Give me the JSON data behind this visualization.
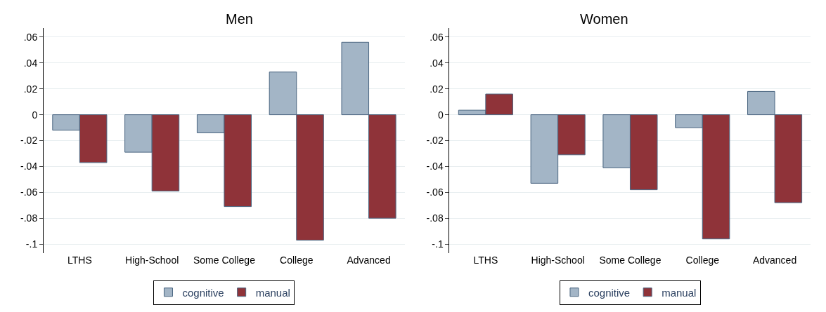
{
  "chart_data": [
    {
      "type": "bar",
      "title": "Men",
      "categories": [
        "LTHS",
        "High-School",
        "Some College",
        "College",
        "Advanced"
      ],
      "series": [
        {
          "name": "cognitive",
          "color": "#a3b5c6",
          "values": [
            -0.012,
            -0.029,
            -0.014,
            0.033,
            0.056
          ]
        },
        {
          "name": "manual",
          "color": "#8f3339",
          "values": [
            -0.037,
            -0.059,
            -0.071,
            -0.097,
            -0.08
          ]
        }
      ],
      "ylim": [
        -0.107,
        0.067
      ],
      "yticks": [
        {
          "value": 0.06,
          "label": ".06"
        },
        {
          "value": 0.04,
          "label": ".04"
        },
        {
          "value": 0.02,
          "label": ".02"
        },
        0,
        {
          "value": -0.02,
          "label": "-.02"
        },
        {
          "value": -0.04,
          "label": "-.04"
        },
        {
          "value": -0.06,
          "label": "-.06"
        },
        {
          "value": -0.08,
          "label": "-.08"
        },
        {
          "value": -0.1,
          "label": "-.1"
        }
      ],
      "grid": "y",
      "legend": "bottom"
    },
    {
      "type": "bar",
      "title": "Women",
      "categories": [
        "LTHS",
        "High-School",
        "Some College",
        "College",
        "Advanced"
      ],
      "series": [
        {
          "name": "cognitive",
          "color": "#a3b5c6",
          "values": [
            0.0035,
            -0.053,
            -0.041,
            -0.01,
            0.018
          ]
        },
        {
          "name": "manual",
          "color": "#8f3339",
          "values": [
            0.016,
            -0.031,
            -0.058,
            -0.096,
            -0.068
          ]
        }
      ],
      "ylim": [
        -0.107,
        0.067
      ],
      "yticks": [
        {
          "value": 0.06,
          "label": ".06"
        },
        {
          "value": 0.04,
          "label": ".04"
        },
        {
          "value": 0.02,
          "label": ".02"
        },
        0,
        {
          "value": -0.02,
          "label": "-.02"
        },
        {
          "value": -0.04,
          "label": "-.04"
        },
        {
          "value": -0.06,
          "label": "-.06"
        },
        {
          "value": -0.08,
          "label": "-.08"
        },
        {
          "value": -0.1,
          "label": "-.1"
        }
      ],
      "grid": "y",
      "legend": "bottom"
    }
  ]
}
